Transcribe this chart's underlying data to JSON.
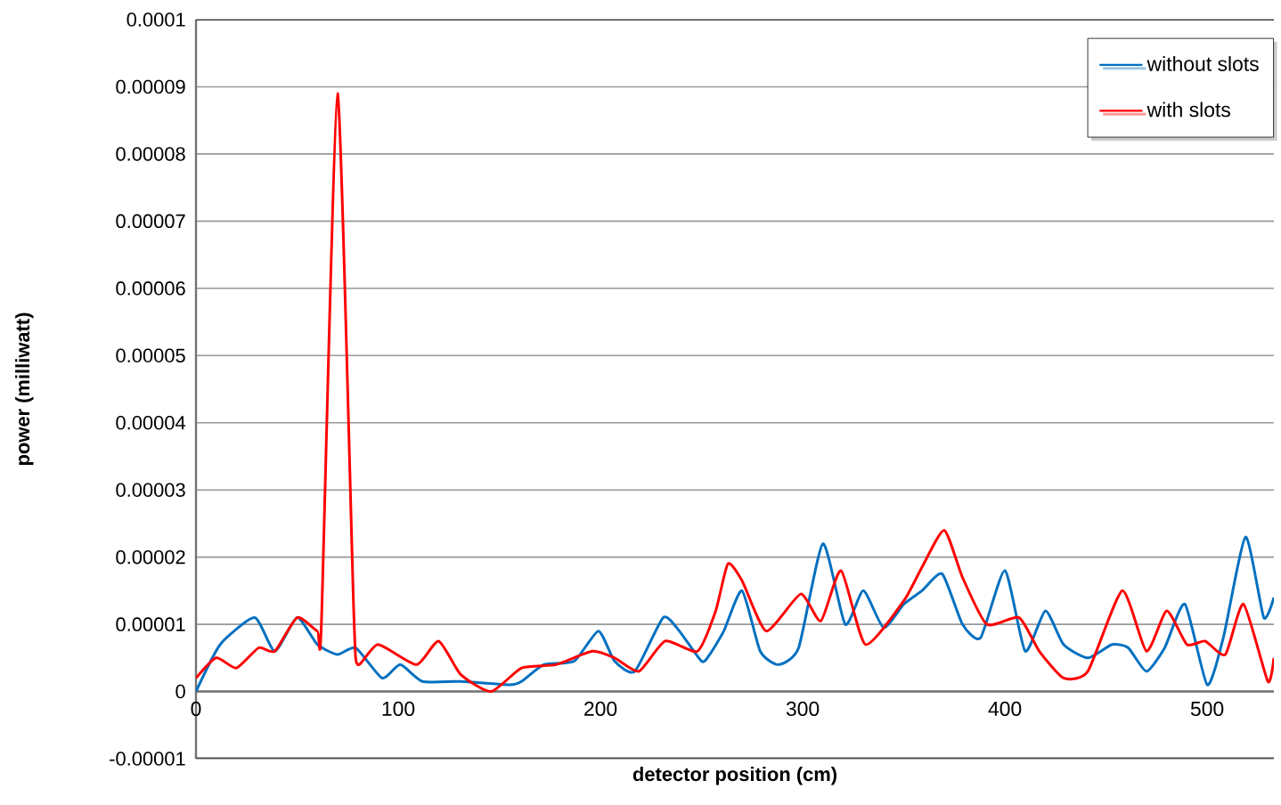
{
  "chart_data": {
    "type": "line",
    "xlabel": "detector position (cm)",
    "ylabel": "power (milliwatt)",
    "xlim": [
      0,
      533
    ],
    "ylim": [
      -1e-05,
      0.0001
    ],
    "xticks": [
      {
        "value": 0,
        "label": "0"
      },
      {
        "value": 100,
        "label": "100"
      },
      {
        "value": 200,
        "label": "200"
      },
      {
        "value": 300,
        "label": "300"
      },
      {
        "value": 400,
        "label": "400"
      },
      {
        "value": 500,
        "label": "500"
      }
    ],
    "yticks": [
      {
        "value": -1e-05,
        "label": "-0.00001"
      },
      {
        "value": 0,
        "label": "0"
      },
      {
        "value": 1e-05,
        "label": "0.00001"
      },
      {
        "value": 2e-05,
        "label": "0.00002"
      },
      {
        "value": 3e-05,
        "label": "0.00003"
      },
      {
        "value": 4e-05,
        "label": "0.00004"
      },
      {
        "value": 5e-05,
        "label": "0.00005"
      },
      {
        "value": 6e-05,
        "label": "0.00006"
      },
      {
        "value": 7e-05,
        "label": "0.00007"
      },
      {
        "value": 8e-05,
        "label": "0.00008"
      },
      {
        "value": 9e-05,
        "label": "0.00009"
      },
      {
        "value": 0.0001,
        "label": "0.0001"
      }
    ],
    "grid": "y",
    "legend": "top right",
    "marker": "none",
    "line_style": "solid",
    "series": [
      {
        "name": "without slots",
        "color": "#0070c0",
        "x": [
          0,
          12,
          29,
          39,
          50,
          60,
          70,
          79,
          92,
          101,
          112,
          131,
          155,
          161,
          172,
          187,
          199,
          207,
          217,
          231,
          239,
          250,
          254,
          261,
          270,
          279,
          288,
          298,
          310,
          321,
          330,
          340,
          350,
          359,
          369,
          379,
          388,
          400,
          410,
          420,
          429,
          441,
          453,
          461,
          470,
          479,
          489,
          500,
          508,
          519,
          528,
          533
        ],
        "values": [
          0,
          7e-06,
          1.1e-05,
          6e-06,
          1.1e-05,
          7e-06,
          5.5e-06,
          6.5e-06,
          2e-06,
          4e-06,
          1.5e-06,
          1.5e-06,
          1e-06,
          1.5e-06,
          4e-06,
          4.5e-06,
          9e-06,
          4.5e-06,
          3e-06,
          1.1e-05,
          9e-06,
          4.5e-06,
          5.5e-06,
          9e-06,
          1.5e-05,
          6e-06,
          4e-06,
          6.5e-06,
          2.2e-05,
          1e-05,
          1.5e-05,
          9.5e-06,
          1.3e-05,
          1.5e-05,
          1.75e-05,
          1e-05,
          8e-06,
          1.8e-05,
          6e-06,
          1.2e-05,
          7e-06,
          5e-06,
          7e-06,
          6.5e-06,
          3e-06,
          6.5e-06,
          1.3e-05,
          1e-06,
          8e-06,
          2.3e-05,
          1.1e-05,
          1.4e-05
        ]
      },
      {
        "name": "with slots",
        "color": "#ff0000",
        "x": [
          0,
          10,
          20,
          31,
          39,
          50,
          60,
          62,
          70,
          78,
          80,
          90,
          109,
          120,
          131,
          146,
          161,
          178,
          196,
          207,
          219,
          232,
          248,
          257,
          263,
          270,
          282,
          299,
          309,
          319,
          331,
          350,
          359,
          370,
          379,
          391,
          407,
          417,
          429,
          441,
          458,
          470,
          480,
          490,
          499,
          509,
          518,
          530,
          533
        ],
        "values": [
          2e-06,
          5e-06,
          3.5e-06,
          6.5e-06,
          6e-06,
          1.1e-05,
          9e-06,
          1e-05,
          8.9e-05,
          1.2e-05,
          4e-06,
          7e-06,
          4e-06,
          7.5e-06,
          2.5e-06,
          0,
          3.5e-06,
          4e-06,
          6e-06,
          5e-06,
          3e-06,
          7.5e-06,
          6e-06,
          1.2e-05,
          1.9e-05,
          1.65e-05,
          9e-06,
          1.45e-05,
          1.05e-05,
          1.8e-05,
          7e-06,
          1.35e-05,
          1.85e-05,
          2.4e-05,
          1.7e-05,
          1e-05,
          1.1e-05,
          6e-06,
          2e-06,
          3e-06,
          1.5e-05,
          6e-06,
          1.2e-05,
          7e-06,
          7.5e-06,
          5.5e-06,
          1.3e-05,
          1.5e-06,
          5e-06
        ]
      }
    ]
  }
}
